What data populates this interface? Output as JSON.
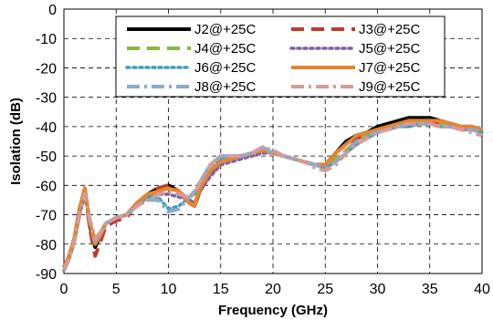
{
  "chart_data": {
    "type": "line",
    "title": "",
    "xlabel": "Frequency (GHz)",
    "ylabel": "Isolation (dB)",
    "xlim": [
      0,
      40
    ],
    "ylim": [
      -90,
      0
    ],
    "xticks": [
      "0",
      "5",
      "10",
      "15",
      "20",
      "25",
      "30",
      "35",
      "40"
    ],
    "yticks": [
      "0",
      "-10",
      "-20",
      "-30",
      "-40",
      "-50",
      "-60",
      "-70",
      "-80",
      "-90"
    ],
    "grid": "dashed",
    "legend": "top-center",
    "series": [
      {
        "name": "J2@+25C",
        "color": "#000000",
        "dash": "solid",
        "x": [
          0,
          0.5,
          1,
          1.5,
          2,
          2.5,
          3,
          3.5,
          4,
          5,
          6,
          7,
          8,
          9,
          10,
          11,
          12,
          12.5,
          13,
          14,
          15,
          16,
          17,
          18,
          19,
          20,
          21,
          22,
          23,
          24,
          25,
          26,
          27,
          28,
          29,
          30,
          31,
          32,
          33,
          34,
          35,
          36,
          37,
          38,
          39,
          40
        ],
        "y": [
          -88,
          -84,
          -78,
          -68,
          -61,
          -74,
          -81,
          -77,
          -73,
          -71,
          -70,
          -66,
          -63,
          -61,
          -60,
          -62,
          -66,
          -67,
          -62,
          -56,
          -52,
          -51,
          -50,
          -49,
          -48,
          -49,
          -50,
          -51,
          -52,
          -53,
          -53,
          -49,
          -45,
          -43,
          -42,
          -40,
          -39,
          -38,
          -37,
          -37,
          -37,
          -38,
          -39,
          -40,
          -40,
          -41
        ]
      },
      {
        "name": "J3@+25C",
        "color": "#c0392b",
        "dash": "dashed",
        "x": [
          0,
          0.5,
          1,
          1.5,
          2,
          2.5,
          3,
          3.5,
          4,
          5,
          6,
          7,
          8,
          9,
          10,
          11,
          12,
          12.5,
          13,
          14,
          15,
          16,
          17,
          18,
          19,
          20,
          21,
          22,
          23,
          24,
          25,
          26,
          27,
          28,
          29,
          30,
          31,
          32,
          33,
          34,
          35,
          36,
          37,
          38,
          39,
          40
        ],
        "y": [
          -88,
          -84,
          -78,
          -68,
          -62,
          -75,
          -84,
          -79,
          -74,
          -72,
          -71,
          -66,
          -63,
          -61,
          -60,
          -62,
          -66,
          -67,
          -62,
          -56,
          -52,
          -51,
          -50,
          -49,
          -48,
          -49,
          -50,
          -51,
          -52,
          -53,
          -53,
          -49,
          -46,
          -44,
          -43,
          -41,
          -40,
          -39,
          -38,
          -38,
          -38,
          -39,
          -40,
          -41,
          -41,
          -42
        ]
      },
      {
        "name": "J4@+25C",
        "color": "#8bb63f",
        "dash": "dashed",
        "x": [
          0,
          0.5,
          1,
          1.5,
          2,
          2.5,
          3,
          3.5,
          4,
          5,
          6,
          7,
          8,
          9,
          10,
          11,
          12,
          12.5,
          13,
          14,
          15,
          16,
          17,
          18,
          19,
          20,
          21,
          22,
          23,
          24,
          25,
          26,
          27,
          28,
          29,
          30,
          31,
          32,
          33,
          34,
          35,
          36,
          37,
          38,
          39,
          40
        ],
        "y": [
          -89,
          -85,
          -79,
          -69,
          -62,
          -73,
          -79,
          -76,
          -73,
          -71,
          -70,
          -67,
          -64,
          -62,
          -61,
          -62,
          -65,
          -66,
          -62,
          -56,
          -52,
          -51,
          -50,
          -49,
          -48,
          -49,
          -50,
          -51,
          -52,
          -53,
          -54,
          -51,
          -48,
          -45,
          -43,
          -41,
          -40,
          -39,
          -39,
          -39,
          -39,
          -39,
          -40,
          -40,
          -41,
          -42
        ]
      },
      {
        "name": "J5@+25C",
        "color": "#7d5fa8",
        "dash": "dotted",
        "x": [
          0,
          0.5,
          1,
          1.5,
          2,
          2.5,
          3,
          3.5,
          4,
          5,
          6,
          7,
          8,
          9,
          10,
          11,
          12,
          12.5,
          13,
          14,
          15,
          16,
          17,
          18,
          19,
          20,
          21,
          22,
          23,
          24,
          25,
          26,
          27,
          28,
          29,
          30,
          31,
          32,
          33,
          34,
          35,
          36,
          37,
          38,
          39,
          40
        ],
        "y": [
          -89,
          -85,
          -79,
          -70,
          -63,
          -73,
          -79,
          -76,
          -73,
          -71,
          -70,
          -67,
          -64,
          -63,
          -63,
          -64,
          -65,
          -66,
          -62,
          -57,
          -53,
          -52,
          -51,
          -50,
          -49,
          -49,
          -50,
          -51,
          -52,
          -53,
          -54,
          -52,
          -49,
          -46,
          -44,
          -42,
          -41,
          -40,
          -40,
          -39,
          -39,
          -40,
          -40,
          -41,
          -41,
          -42
        ]
      },
      {
        "name": "J6@+25C",
        "color": "#3fa0b8",
        "dash": "dotted",
        "x": [
          0,
          0.5,
          1,
          1.5,
          2,
          2.5,
          3,
          3.5,
          4,
          5,
          6,
          7,
          8,
          9,
          10,
          11,
          12,
          12.5,
          13,
          14,
          15,
          16,
          17,
          18,
          19,
          20,
          21,
          22,
          23,
          24,
          25,
          26,
          27,
          28,
          29,
          30,
          31,
          32,
          33,
          34,
          35,
          36,
          37,
          38,
          39,
          40
        ],
        "y": [
          -89,
          -85,
          -79,
          -70,
          -63,
          -72,
          -79,
          -76,
          -73,
          -71,
          -70,
          -67,
          -64,
          -64,
          -68,
          -67,
          -64,
          -63,
          -60,
          -55,
          -51,
          -50,
          -50,
          -49,
          -48,
          -49,
          -50,
          -51,
          -52,
          -53,
          -54,
          -52,
          -49,
          -46,
          -44,
          -42,
          -41,
          -40,
          -40,
          -39,
          -39,
          -40,
          -40,
          -41,
          -41,
          -42
        ]
      },
      {
        "name": "J7@+25C",
        "color": "#e8842c",
        "dash": "solid",
        "x": [
          0,
          0.5,
          1,
          1.5,
          2,
          2.5,
          3,
          3.5,
          4,
          5,
          6,
          7,
          8,
          9,
          10,
          11,
          12,
          12.5,
          13,
          14,
          15,
          16,
          17,
          18,
          19,
          20,
          21,
          22,
          23,
          24,
          25,
          26,
          27,
          28,
          29,
          30,
          31,
          32,
          33,
          34,
          35,
          36,
          37,
          38,
          39,
          40
        ],
        "y": [
          -88,
          -84,
          -78,
          -68,
          -61,
          -73,
          -80,
          -77,
          -73,
          -71,
          -70,
          -66,
          -63,
          -62,
          -61,
          -62,
          -66,
          -67,
          -61,
          -55,
          -52,
          -51,
          -50,
          -49,
          -48,
          -49,
          -50,
          -51,
          -52,
          -53,
          -53,
          -49,
          -46,
          -43,
          -42,
          -41,
          -40,
          -39,
          -38,
          -38,
          -38,
          -38,
          -39,
          -40,
          -40,
          -41
        ]
      },
      {
        "name": "J8@+25C",
        "color": "#8ea9c8",
        "dash": "dashdot",
        "x": [
          0,
          0.5,
          1,
          1.5,
          2,
          2.5,
          3,
          3.5,
          4,
          5,
          6,
          7,
          8,
          9,
          10,
          11,
          12,
          12.5,
          13,
          14,
          15,
          16,
          17,
          18,
          19,
          20,
          21,
          22,
          23,
          24,
          25,
          26,
          27,
          28,
          29,
          30,
          31,
          32,
          33,
          34,
          35,
          36,
          37,
          38,
          39,
          40
        ],
        "y": [
          -89,
          -85,
          -79,
          -70,
          -63,
          -72,
          -79,
          -76,
          -73,
          -71,
          -70,
          -67,
          -65,
          -65,
          -69,
          -68,
          -64,
          -62,
          -59,
          -53,
          -50,
          -50,
          -50,
          -49,
          -47,
          -49,
          -50,
          -51,
          -52,
          -53,
          -54,
          -52,
          -48,
          -45,
          -43,
          -42,
          -41,
          -40,
          -39,
          -39,
          -39,
          -40,
          -40,
          -41,
          -41,
          -42
        ]
      },
      {
        "name": "J9@+25C",
        "color": "#d79a9a",
        "dash": "dashdot",
        "x": [
          0,
          0.5,
          1,
          1.5,
          2,
          2.5,
          3,
          3.5,
          4,
          5,
          6,
          7,
          8,
          9,
          10,
          11,
          12,
          12.5,
          13,
          14,
          15,
          16,
          17,
          18,
          19,
          20,
          21,
          22,
          23,
          24,
          25,
          26,
          27,
          28,
          29,
          30,
          31,
          32,
          33,
          34,
          35,
          36,
          37,
          38,
          39,
          40
        ],
        "y": [
          -89,
          -85,
          -79,
          -70,
          -63,
          -72,
          -78,
          -76,
          -73,
          -71,
          -70,
          -67,
          -65,
          -63,
          -62,
          -63,
          -64,
          -63,
          -59,
          -53,
          -50,
          -50,
          -50,
          -49,
          -47,
          -48,
          -50,
          -51,
          -52,
          -54,
          -55,
          -53,
          -49,
          -46,
          -44,
          -42,
          -41,
          -40,
          -39,
          -39,
          -39,
          -40,
          -40,
          -41,
          -42,
          -43
        ]
      }
    ]
  }
}
